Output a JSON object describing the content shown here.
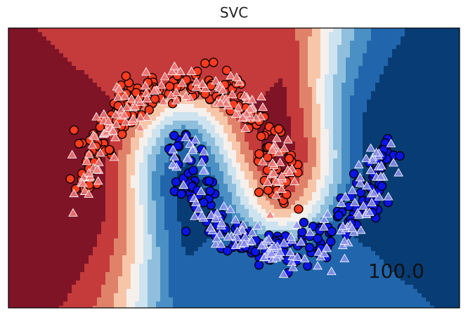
{
  "chart_data": {
    "type": "scatter",
    "title": "SVC",
    "score_label": "100.0",
    "xlabel": "",
    "ylabel": "",
    "xlim": [
      -1.8,
      2.8
    ],
    "ylim": [
      -1.0,
      1.5
    ],
    "grid": false,
    "legend": "none",
    "colormap": "RdBu",
    "series": [
      {
        "class": "0",
        "marker": "circle",
        "split": "train",
        "color": "#ff3b1f",
        "arc": {
          "center": [
            0.0,
            0.0
          ],
          "radius": 1.0,
          "theta_range": [
            0,
            180
          ]
        }
      },
      {
        "class": "1",
        "marker": "circle",
        "split": "train",
        "color": "#0a14e6",
        "arc": {
          "center": [
            1.0,
            0.5
          ],
          "radius": 1.0,
          "theta_range": [
            180,
            360
          ]
        }
      },
      {
        "class": "0",
        "marker": "triangle",
        "split": "test",
        "color": "#f27b7b",
        "arc": {
          "center": [
            0.0,
            0.0
          ],
          "radius": 1.0,
          "theta_range": [
            0,
            180
          ]
        }
      },
      {
        "class": "1",
        "marker": "triangle",
        "split": "test",
        "color": "#8f93f0",
        "arc": {
          "center": [
            1.0,
            0.5
          ],
          "radius": 1.0,
          "theta_range": [
            180,
            360
          ]
        }
      }
    ],
    "contour_colors": [
      "#083c74",
      "#2166ac",
      "#4a90c4",
      "#8fbfdc",
      "#cde3ef",
      "#f6f0ed",
      "#f7c6a9",
      "#e0826a",
      "#c53a3b",
      "#7f1427"
    ]
  }
}
